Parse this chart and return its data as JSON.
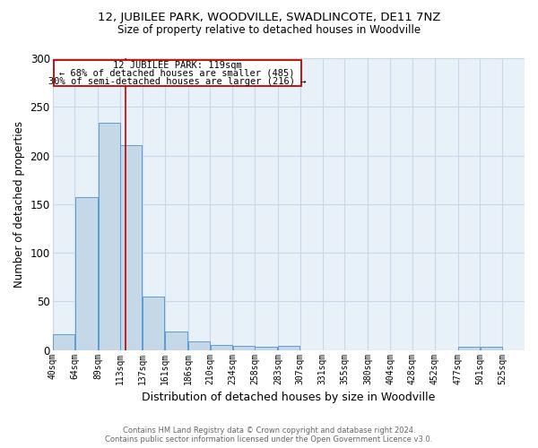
{
  "title1": "12, JUBILEE PARK, WOODVILLE, SWADLINCOTE, DE11 7NZ",
  "title2": "Size of property relative to detached houses in Woodville",
  "xlabel": "Distribution of detached houses by size in Woodville",
  "ylabel": "Number of detached properties",
  "footnote1": "Contains HM Land Registry data © Crown copyright and database right 2024.",
  "footnote2": "Contains public sector information licensed under the Open Government Licence v3.0.",
  "annotation_line1": "12 JUBILEE PARK: 119sqm",
  "annotation_line2": "← 68% of detached houses are smaller (485)",
  "annotation_line3": "30% of semi-detached houses are larger (216) →",
  "bar_left_edges": [
    40,
    64,
    89,
    113,
    137,
    161,
    186,
    210,
    234,
    258,
    283,
    307,
    331,
    355,
    380,
    404,
    428,
    452,
    477,
    501
  ],
  "bar_widths": [
    24,
    25,
    24,
    24,
    24,
    25,
    24,
    24,
    24,
    25,
    24,
    24,
    24,
    25,
    24,
    24,
    24,
    25,
    24,
    24
  ],
  "bar_heights": [
    16,
    157,
    234,
    211,
    55,
    19,
    9,
    5,
    4,
    3,
    4,
    0,
    0,
    0,
    0,
    0,
    0,
    0,
    3,
    3
  ],
  "bar_color": "#c5d8e8",
  "bar_edge_color": "#5b9bd5",
  "property_line_x": 119,
  "property_line_color": "#c00000",
  "ylim": [
    0,
    300
  ],
  "xlim": [
    40,
    549
  ],
  "tick_labels": [
    "40sqm",
    "64sqm",
    "89sqm",
    "113sqm",
    "137sqm",
    "161sqm",
    "186sqm",
    "210sqm",
    "234sqm",
    "258sqm",
    "283sqm",
    "307sqm",
    "331sqm",
    "355sqm",
    "380sqm",
    "404sqm",
    "428sqm",
    "452sqm",
    "477sqm",
    "501sqm",
    "525sqm"
  ],
  "tick_positions": [
    40,
    64,
    89,
    113,
    137,
    161,
    186,
    210,
    234,
    258,
    283,
    307,
    331,
    355,
    380,
    404,
    428,
    452,
    477,
    501,
    525
  ],
  "yticks": [
    0,
    50,
    100,
    150,
    200,
    250,
    300
  ],
  "bg_color": "#ffffff",
  "plot_bg_color": "#e8f0f8",
  "grid_color": "#c8d8e8"
}
